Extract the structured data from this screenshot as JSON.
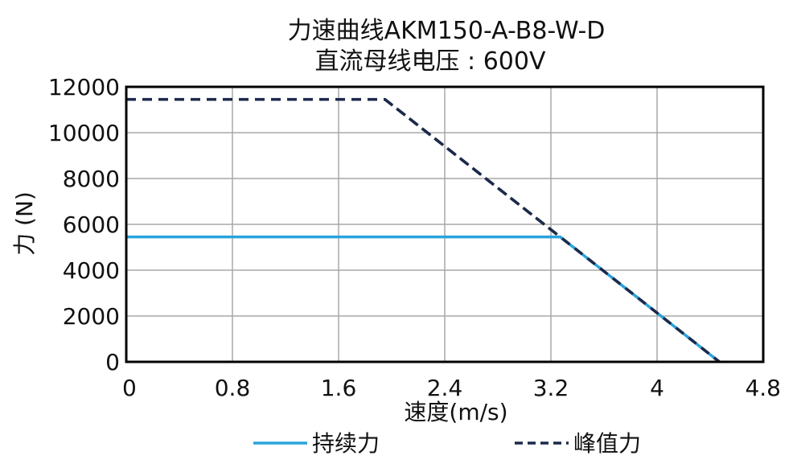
{
  "chart_data": {
    "type": "line",
    "title": "力速曲线AKM150-A-B8-W-D",
    "subtitle": "直流母线电压 : 600V",
    "xlabel": "速度(m/s)",
    "ylabel": "力 (N)",
    "xlim": [
      0,
      4.8
    ],
    "ylim": [
      0,
      12000
    ],
    "x_ticks": [
      0,
      0.8,
      1.6,
      2.4,
      3.2,
      4,
      4.8
    ],
    "x_tick_labels": [
      "0",
      "0.8",
      "1.6",
      "2.4",
      "3.2",
      "4",
      "4.8"
    ],
    "y_ticks": [
      0,
      2000,
      4000,
      6000,
      8000,
      10000,
      12000
    ],
    "y_tick_labels": [
      "0",
      "2000",
      "4000",
      "6000",
      "8000",
      "10000",
      "12000"
    ],
    "grid": true,
    "legend_position": "bottom",
    "series": [
      {
        "name": "持续力",
        "style": "solid",
        "color": "#29a3dc",
        "x": [
          0,
          3.27,
          4.47
        ],
        "y": [
          5450,
          5450,
          0
        ]
      },
      {
        "name": "峰值力",
        "style": "dashed",
        "color": "#1b2a4a",
        "x": [
          0,
          1.95,
          4.47
        ],
        "y": [
          11450,
          11450,
          0
        ]
      }
    ]
  }
}
